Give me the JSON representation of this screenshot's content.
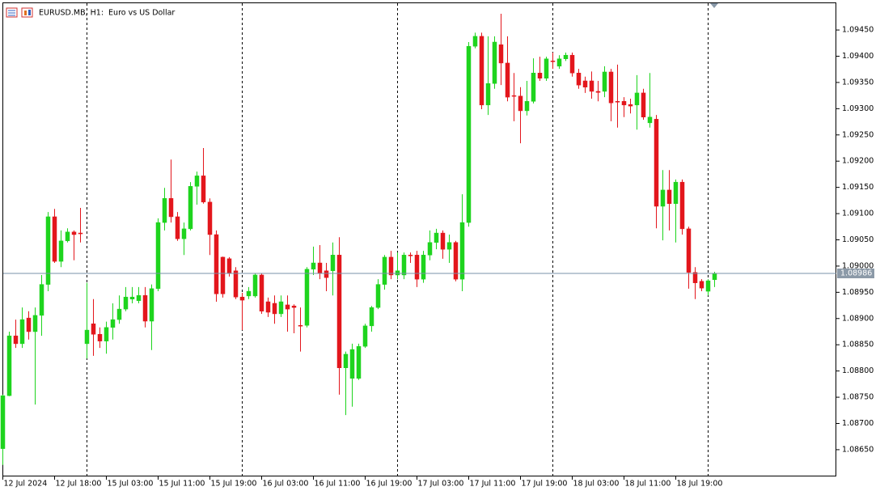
{
  "chart_data": {
    "type": "candlestick",
    "title": "EURUSD.MB, H1:  Euro vs US Dollar",
    "categories": [
      "12 Jul 2024",
      null,
      null,
      null,
      null,
      null,
      null,
      null,
      "12 Jul 18:00",
      null,
      null,
      null,
      null,
      null,
      null,
      null,
      "15 Jul 03:00",
      null,
      null,
      null,
      null,
      null,
      null,
      null,
      "15 Jul 11:00",
      null,
      null,
      null,
      null,
      null,
      null,
      null,
      "15 Jul 19:00",
      null,
      null,
      null,
      null,
      null,
      null,
      null,
      "16 Jul 03:00",
      null,
      null,
      null,
      null,
      null,
      null,
      null,
      "16 Jul 11:00",
      null,
      null,
      null,
      null,
      null,
      null,
      null,
      "16 Jul 19:00",
      null,
      null,
      null,
      null,
      null,
      null,
      null,
      "17 Jul 03:00",
      null,
      null,
      null,
      null,
      null,
      null,
      null,
      "17 Jul 11:00",
      null,
      null,
      null,
      null,
      null,
      null,
      null,
      "17 Jul 19:00",
      null,
      null,
      null,
      null,
      null,
      null,
      null,
      "18 Jul 03:00",
      null,
      null,
      null,
      null,
      null,
      null,
      null,
      "18 Jul 11:00",
      null,
      null,
      null,
      null,
      null,
      null,
      null,
      "18 Jul 19:00",
      null,
      null,
      null,
      null,
      null,
      null
    ],
    "open": [
      1.08652,
      1.08753,
      1.08867,
      1.08852,
      1.08901,
      1.08875,
      1.08906,
      1.08965,
      1.09094,
      1.09009,
      1.09048,
      1.09065,
      1.09063,
      1.08852,
      1.0889,
      1.0887,
      1.08857,
      1.08883,
      1.08898,
      1.08918,
      1.08937,
      1.08934,
      1.08944,
      1.08895,
      1.08957,
      1.09083,
      1.09129,
      1.09094,
      1.09052,
      1.09071,
      1.09152,
      1.09172,
      1.09122,
      1.0906,
      1.09017,
      1.09014,
      1.08991,
      1.08941,
      1.08943,
      1.08943,
      1.08983,
      1.08932,
      1.08929,
      1.08909,
      1.08926,
      1.08924,
      1.08887,
      1.08887,
      1.08994,
      1.09006,
      1.08991,
      1.08991,
      1.09021,
      1.08806,
      1.08786,
      1.08786,
      1.08847,
      1.08886,
      1.08921,
      1.08965,
      1.09017,
      1.08983,
      1.08983,
      1.09021,
      1.09021,
      1.08975,
      1.09021,
      1.09045,
      1.09063,
      1.09032,
      1.09045,
      1.08975,
      1.09083,
      1.09419,
      1.09438,
      1.09307,
      1.09348,
      1.09422,
      1.09387,
      1.09325,
      1.09324,
      1.09296,
      1.09314,
      1.09368,
      1.09358,
      1.09391,
      1.09381,
      1.09395,
      1.09402,
      1.09368,
      1.09353,
      1.09353,
      1.09333,
      1.09333,
      1.0937,
      1.09314,
      1.09314,
      1.09308,
      1.09307,
      1.0933,
      1.09273,
      1.0928,
      1.09114,
      1.09145,
      1.09119,
      1.0916,
      1.09071,
      1.08988,
      1.08971,
      1.08952,
      1.08974
    ],
    "high": [
      1.08755,
      1.08875,
      1.08898,
      1.08921,
      1.08914,
      1.08921,
      1.08983,
      1.09103,
      1.09109,
      1.09068,
      1.09072,
      1.09068,
      1.09111,
      1.08968,
      1.08937,
      1.08883,
      1.08894,
      1.08929,
      1.08944,
      1.0896,
      1.0896,
      1.0896,
      1.0896,
      1.08965,
      1.09091,
      1.09149,
      1.09203,
      1.09103,
      1.09083,
      1.0916,
      1.0918,
      1.09225,
      1.09129,
      1.09068,
      1.09018,
      1.09017,
      1.08998,
      1.08949,
      1.0896,
      1.08986,
      1.08986,
      1.0894,
      1.08944,
      1.08944,
      1.08944,
      1.08927,
      1.08921,
      1.08998,
      1.09037,
      1.0904,
      1.09006,
      1.09045,
      1.09055,
      1.08837,
      1.08852,
      1.08852,
      1.0889,
      1.08924,
      1.08975,
      1.09021,
      1.09029,
      1.09026,
      1.09026,
      1.09026,
      1.09029,
      1.09029,
      1.09068,
      1.09071,
      1.09068,
      1.0906,
      1.09048,
      1.09137,
      1.09427,
      1.09445,
      1.09445,
      1.09438,
      1.09438,
      1.09481,
      1.09438,
      1.09368,
      1.09341,
      1.09353,
      1.09396,
      1.09399,
      1.09399,
      1.09407,
      1.09402,
      1.09407,
      1.09407,
      1.09376,
      1.09361,
      1.09371,
      1.09353,
      1.09381,
      1.09376,
      1.09384,
      1.09322,
      1.09319,
      1.09364,
      1.09338,
      1.09368,
      1.09288,
      1.09183,
      1.09183,
      1.09165,
      1.09165,
      1.09075,
      1.08998,
      1.08975,
      1.08975,
      1.08989
    ],
    "low": [
      1.08621,
      1.08752,
      1.08844,
      1.08844,
      1.0886,
      1.08736,
      1.08867,
      1.08952,
      1.09006,
      1.08998,
      1.09045,
      1.09011,
      1.09045,
      1.08824,
      1.08829,
      1.08844,
      1.08833,
      1.0886,
      1.0889,
      1.08914,
      1.08929,
      1.08929,
      1.08883,
      1.0884,
      1.08952,
      1.09068,
      1.09083,
      1.09048,
      1.09021,
      1.09068,
      1.09117,
      1.09119,
      1.09021,
      1.08932,
      1.0894,
      1.0898,
      1.08937,
      1.08878,
      1.08937,
      1.0894,
      1.08909,
      1.08903,
      1.0889,
      1.08903,
      1.08875,
      1.08872,
      1.08837,
      1.08883,
      1.08983,
      1.08975,
      1.08952,
      1.08944,
      1.08755,
      1.08716,
      1.08732,
      1.08783,
      1.08844,
      1.08875,
      1.08918,
      1.08955,
      1.08975,
      1.08975,
      1.08975,
      1.09006,
      1.0896,
      1.08968,
      1.09011,
      1.09032,
      1.09014,
      1.09006,
      1.08971,
      1.08952,
      1.09075,
      1.09415,
      1.09299,
      1.09288,
      1.09338,
      1.09345,
      1.09314,
      1.09276,
      1.09234,
      1.09287,
      1.0931,
      1.09353,
      1.09353,
      1.09376,
      1.09376,
      1.09391,
      1.09361,
      1.09338,
      1.0933,
      1.09319,
      1.09314,
      1.09322,
      1.09276,
      1.09264,
      1.09284,
      1.09291,
      1.0926,
      1.09279,
      1.09264,
      1.09072,
      1.09049,
      1.09068,
      1.09045,
      1.0906,
      1.08957,
      1.08937,
      1.08952,
      1.08944,
      1.0896
    ],
    "close": [
      1.08753,
      1.08867,
      1.08852,
      1.08898,
      1.08875,
      1.08906,
      1.08965,
      1.09094,
      1.09009,
      1.09048,
      1.09065,
      1.0906,
      1.09062,
      1.08878,
      1.0887,
      1.08857,
      1.08883,
      1.08898,
      1.08918,
      1.08941,
      1.08941,
      1.08944,
      1.08895,
      1.08957,
      1.09083,
      1.09129,
      1.09094,
      1.09052,
      1.09071,
      1.09152,
      1.09172,
      1.09122,
      1.0906,
      1.08947,
      1.08947,
      1.08986,
      1.08941,
      1.08935,
      1.08952,
      1.08983,
      1.08914,
      1.08912,
      1.08909,
      1.08932,
      1.08918,
      1.08921,
      1.08886,
      1.08994,
      1.09006,
      1.08986,
      1.08978,
      1.09021,
      1.08806,
      1.08832,
      1.08841,
      1.08847,
      1.08886,
      1.08921,
      1.08965,
      1.09017,
      1.08983,
      1.08991,
      1.09021,
      1.0902,
      1.08975,
      1.09021,
      1.09045,
      1.09063,
      1.09032,
      1.09045,
      1.08975,
      1.09083,
      1.09419,
      1.09438,
      1.09307,
      1.09348,
      1.09427,
      1.09387,
      1.09322,
      1.09324,
      1.09296,
      1.09314,
      1.09368,
      1.09358,
      1.09395,
      1.0939,
      1.09395,
      1.09402,
      1.09368,
      1.09345,
      1.09341,
      1.09333,
      1.09331,
      1.0937,
      1.09311,
      1.09313,
      1.09307,
      1.09305,
      1.0933,
      1.09284,
      1.09284,
      1.09114,
      1.09145,
      1.09119,
      1.0916,
      1.09071,
      1.08988,
      1.08968,
      1.08958,
      1.08972,
      1.08986
    ],
    "up_color": "#1ed41e",
    "down_color": "#e3161c",
    "last_price": 1.08986,
    "ylim": [
      1.08599,
      1.09501
    ],
    "yticks": [
      {
        "value": 1.0945,
        "label": "1.09450"
      },
      {
        "value": 1.094,
        "label": "1.09400"
      },
      {
        "value": 1.0935,
        "label": "1.09350"
      },
      {
        "value": 1.093,
        "label": "1.09300"
      },
      {
        "value": 1.0925,
        "label": "1.09250"
      },
      {
        "value": 1.092,
        "label": "1.09200"
      },
      {
        "value": 1.0915,
        "label": "1.09150"
      },
      {
        "value": 1.091,
        "label": "1.09100"
      },
      {
        "value": 1.0905,
        "label": "1.09050"
      },
      {
        "value": 1.09,
        "label": "1.09000"
      },
      {
        "value": 1.0895,
        "label": "1.08950"
      },
      {
        "value": 1.089,
        "label": "1.08900"
      },
      {
        "value": 1.0885,
        "label": "1.08850"
      },
      {
        "value": 1.088,
        "label": "1.08800"
      },
      {
        "value": 1.0875,
        "label": "1.08750"
      },
      {
        "value": 1.087,
        "label": "1.08700"
      },
      {
        "value": 1.0865,
        "label": "1.08650"
      }
    ],
    "grid": false
  }
}
